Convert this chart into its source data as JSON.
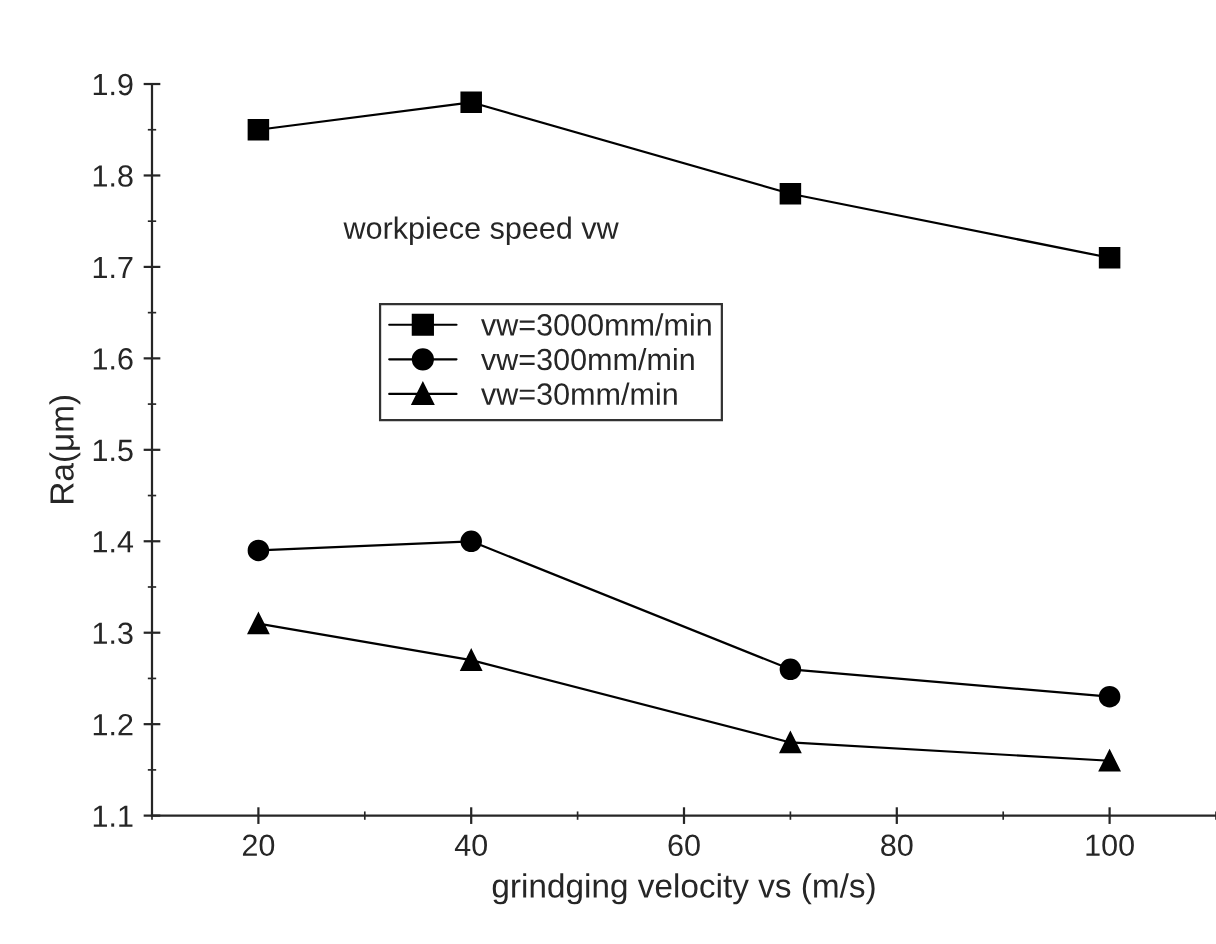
{
  "chart_data": {
    "type": "line",
    "xlabel": "grindging velocity vs (m/s)",
    "ylabel": "Ra(μm)",
    "legend_title": "workpiece speed vw",
    "x": [
      20,
      40,
      70,
      100
    ],
    "series": [
      {
        "name": "vw=3000mm/min",
        "color": "#000000",
        "marker": "square",
        "values": [
          1.85,
          1.88,
          1.78,
          1.71
        ]
      },
      {
        "name": "vw=300mm/min",
        "color": "#000000",
        "marker": "circle",
        "values": [
          1.39,
          1.4,
          1.26,
          1.23
        ]
      },
      {
        "name": "vw=30mm/min",
        "color": "#000000",
        "marker": "triangle",
        "values": [
          1.31,
          1.27,
          1.18,
          1.16
        ]
      }
    ],
    "xlim": [
      10,
      110
    ],
    "xticks": [
      20,
      40,
      60,
      80,
      100
    ],
    "ylim": [
      1.1,
      1.9
    ],
    "yticks": [
      {
        "value": 1.1,
        "label": "1.1"
      },
      {
        "value": 1.2,
        "label": "1.2"
      },
      {
        "value": 1.3,
        "label": "1.3"
      },
      {
        "value": 1.4,
        "label": "1.4"
      },
      {
        "value": 1.5,
        "label": "1.5"
      },
      {
        "value": 1.6,
        "label": "1.6"
      },
      {
        "value": 1.7,
        "label": "1.7"
      },
      {
        "value": 1.8,
        "label": "1.8"
      },
      {
        "value": 1.9,
        "label": "1.9"
      }
    ],
    "legend": "top left",
    "grid": false,
    "line_style": "solid"
  }
}
